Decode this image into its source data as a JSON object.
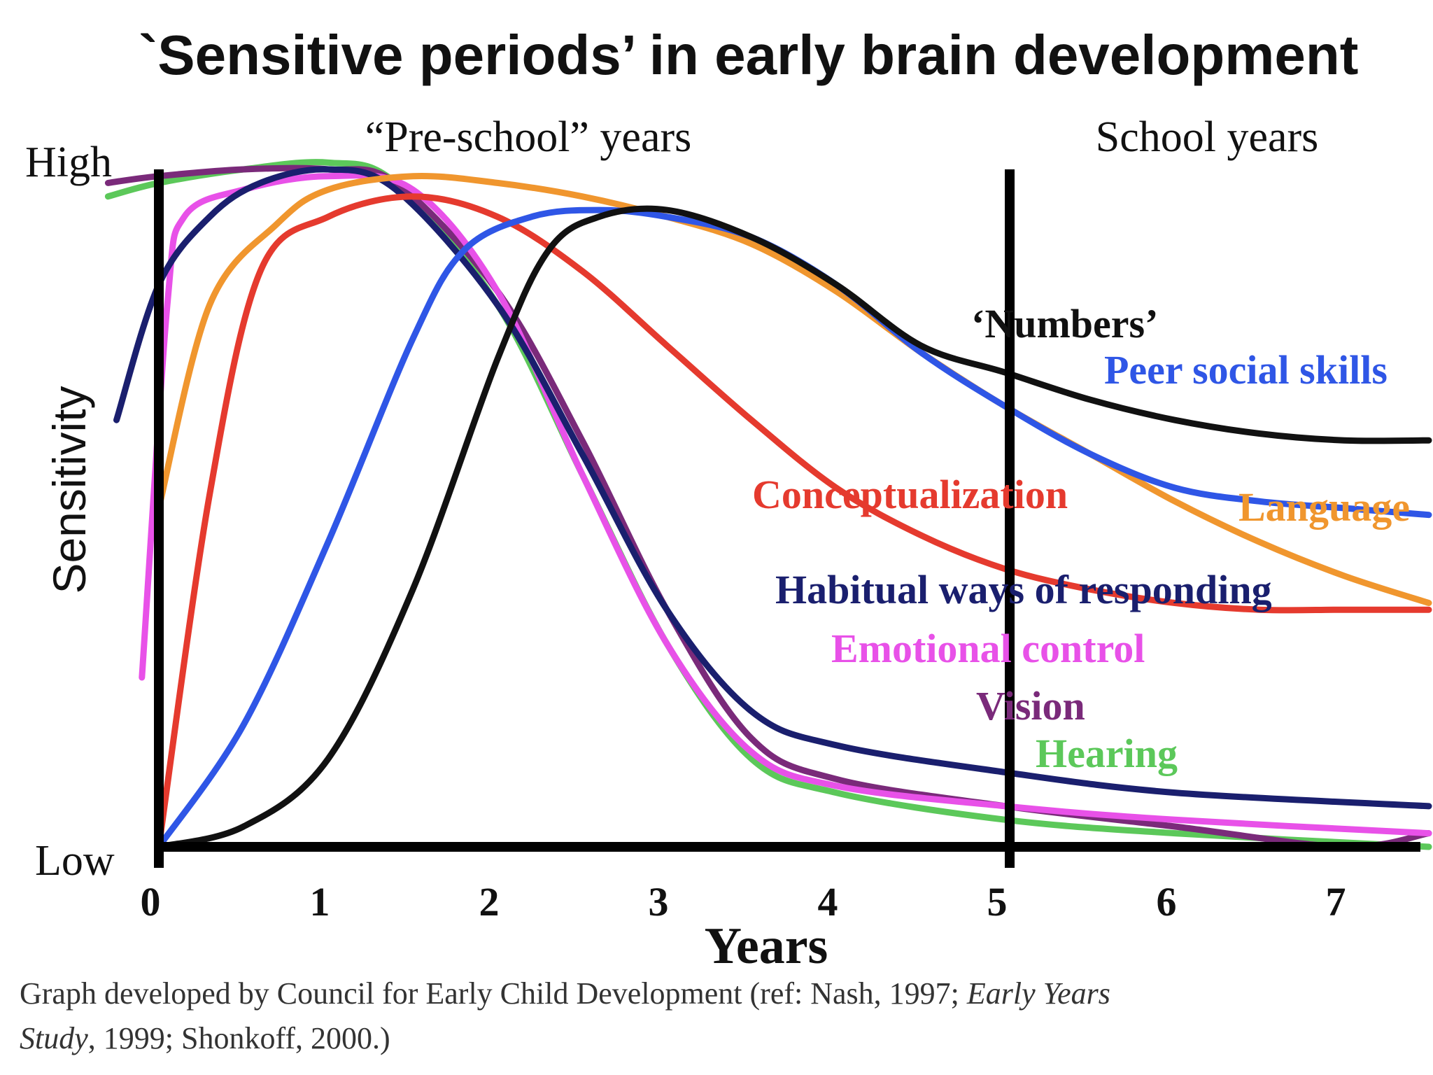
{
  "chart_data": {
    "type": "line",
    "title": "`Sensitive periods’ in early brain development",
    "xlabel": "Years",
    "ylabel": "Sensitivity",
    "y_high_label": "High",
    "y_low_label": "Low",
    "xlim": [
      0,
      7.5
    ],
    "ylim": [
      0,
      1
    ],
    "x_ticks": [
      0,
      1,
      2,
      3,
      4,
      5,
      6,
      7
    ],
    "tick_labels": [
      "0",
      "1",
      "2",
      "3",
      "4",
      "5",
      "6",
      "7"
    ],
    "period_labels": [
      "“Pre-school” years",
      "School years"
    ],
    "period_divider_x": 5,
    "series": [
      {
        "name": "Hearing",
        "label": "Hearing",
        "color": "#5cc85a",
        "x": [
          -0.3,
          0,
          0.5,
          1,
          1.4,
          2,
          2.5,
          3,
          3.5,
          4,
          5,
          6,
          7.5
        ],
        "y": [
          0.96,
          0.98,
          1.0,
          1.01,
          0.98,
          0.8,
          0.55,
          0.3,
          0.13,
          0.08,
          0.04,
          0.02,
          0.0
        ]
      },
      {
        "name": "Vision",
        "label": "Vision",
        "color": "#7a2a7a",
        "x": [
          -0.3,
          0,
          0.5,
          1,
          1.4,
          2,
          2.5,
          3,
          3.5,
          4,
          5,
          6,
          7,
          7.5
        ],
        "y": [
          0.98,
          0.99,
          1.0,
          1.0,
          0.98,
          0.82,
          0.6,
          0.35,
          0.16,
          0.1,
          0.06,
          0.03,
          0.0,
          0.02
        ]
      },
      {
        "name": "Emotional control",
        "label": "Emotional control",
        "color": "#e851e8",
        "x": [
          -0.1,
          0.05,
          0.15,
          0.5,
          1,
          1.5,
          2,
          2.5,
          3,
          3.5,
          4,
          5,
          6,
          7.5
        ],
        "y": [
          0.25,
          0.8,
          0.93,
          0.97,
          0.99,
          0.97,
          0.82,
          0.55,
          0.3,
          0.14,
          0.09,
          0.06,
          0.04,
          0.02
        ]
      },
      {
        "name": "Habitual ways of responding",
        "label": "Habitual ways of responding",
        "color": "#1a1f6e",
        "x": [
          -0.25,
          0,
          0.3,
          0.6,
          1,
          1.4,
          2,
          2.5,
          3,
          3.5,
          4,
          5,
          6,
          7.5
        ],
        "y": [
          0.63,
          0.83,
          0.93,
          0.98,
          1.0,
          0.97,
          0.8,
          0.58,
          0.35,
          0.2,
          0.15,
          0.11,
          0.08,
          0.06
        ]
      },
      {
        "name": "Language",
        "label": "Language",
        "color": "#f0962e",
        "x": [
          0,
          0.3,
          0.7,
          1,
          1.5,
          2,
          2.5,
          3,
          3.5,
          4,
          4.5,
          5,
          5.5,
          6,
          6.5,
          7,
          7.5
        ],
        "y": [
          0.5,
          0.8,
          0.92,
          0.97,
          0.99,
          0.98,
          0.96,
          0.93,
          0.89,
          0.82,
          0.73,
          0.65,
          0.58,
          0.51,
          0.45,
          0.4,
          0.36
        ]
      },
      {
        "name": "Conceptualization",
        "label": "Conceptualization",
        "color": "#e53a2e",
        "x": [
          0,
          0.3,
          0.6,
          1,
          1.5,
          2,
          2.5,
          3,
          3.5,
          4,
          4.5,
          5,
          5.5,
          6,
          6.5,
          7,
          7.5
        ],
        "y": [
          0.0,
          0.52,
          0.85,
          0.93,
          0.96,
          0.93,
          0.85,
          0.74,
          0.63,
          0.53,
          0.46,
          0.41,
          0.38,
          0.36,
          0.35,
          0.35,
          0.35
        ]
      },
      {
        "name": "Peer social skills",
        "label": "Peer social skills",
        "color": "#2f56e6",
        "x": [
          0,
          0.5,
          1,
          1.5,
          1.8,
          2.2,
          2.6,
          3,
          3.5,
          4,
          4.5,
          5,
          5.5,
          6,
          6.5,
          7,
          7.5
        ],
        "y": [
          0.0,
          0.18,
          0.45,
          0.75,
          0.88,
          0.93,
          0.94,
          0.93,
          0.9,
          0.83,
          0.73,
          0.65,
          0.58,
          0.53,
          0.51,
          0.5,
          0.49
        ]
      },
      {
        "name": "Numbers",
        "label": "‘Numbers’",
        "color": "#111111",
        "x": [
          0,
          0.5,
          1,
          1.5,
          2,
          2.3,
          2.6,
          3,
          3.5,
          4,
          4.5,
          5,
          5.5,
          6,
          6.5,
          7,
          7.5
        ],
        "y": [
          0.0,
          0.03,
          0.13,
          0.38,
          0.72,
          0.88,
          0.93,
          0.94,
          0.9,
          0.83,
          0.74,
          0.7,
          0.66,
          0.63,
          0.61,
          0.6,
          0.6
        ]
      }
    ]
  },
  "caption": {
    "line1_prefix": "Graph developed by Council for Early Child Development (ref: Nash, 1997; ",
    "line1_italic": "Early Years",
    "line2_italic": "Study",
    "line2_suffix": ", 1999; Shonkoff, 2000.)"
  }
}
